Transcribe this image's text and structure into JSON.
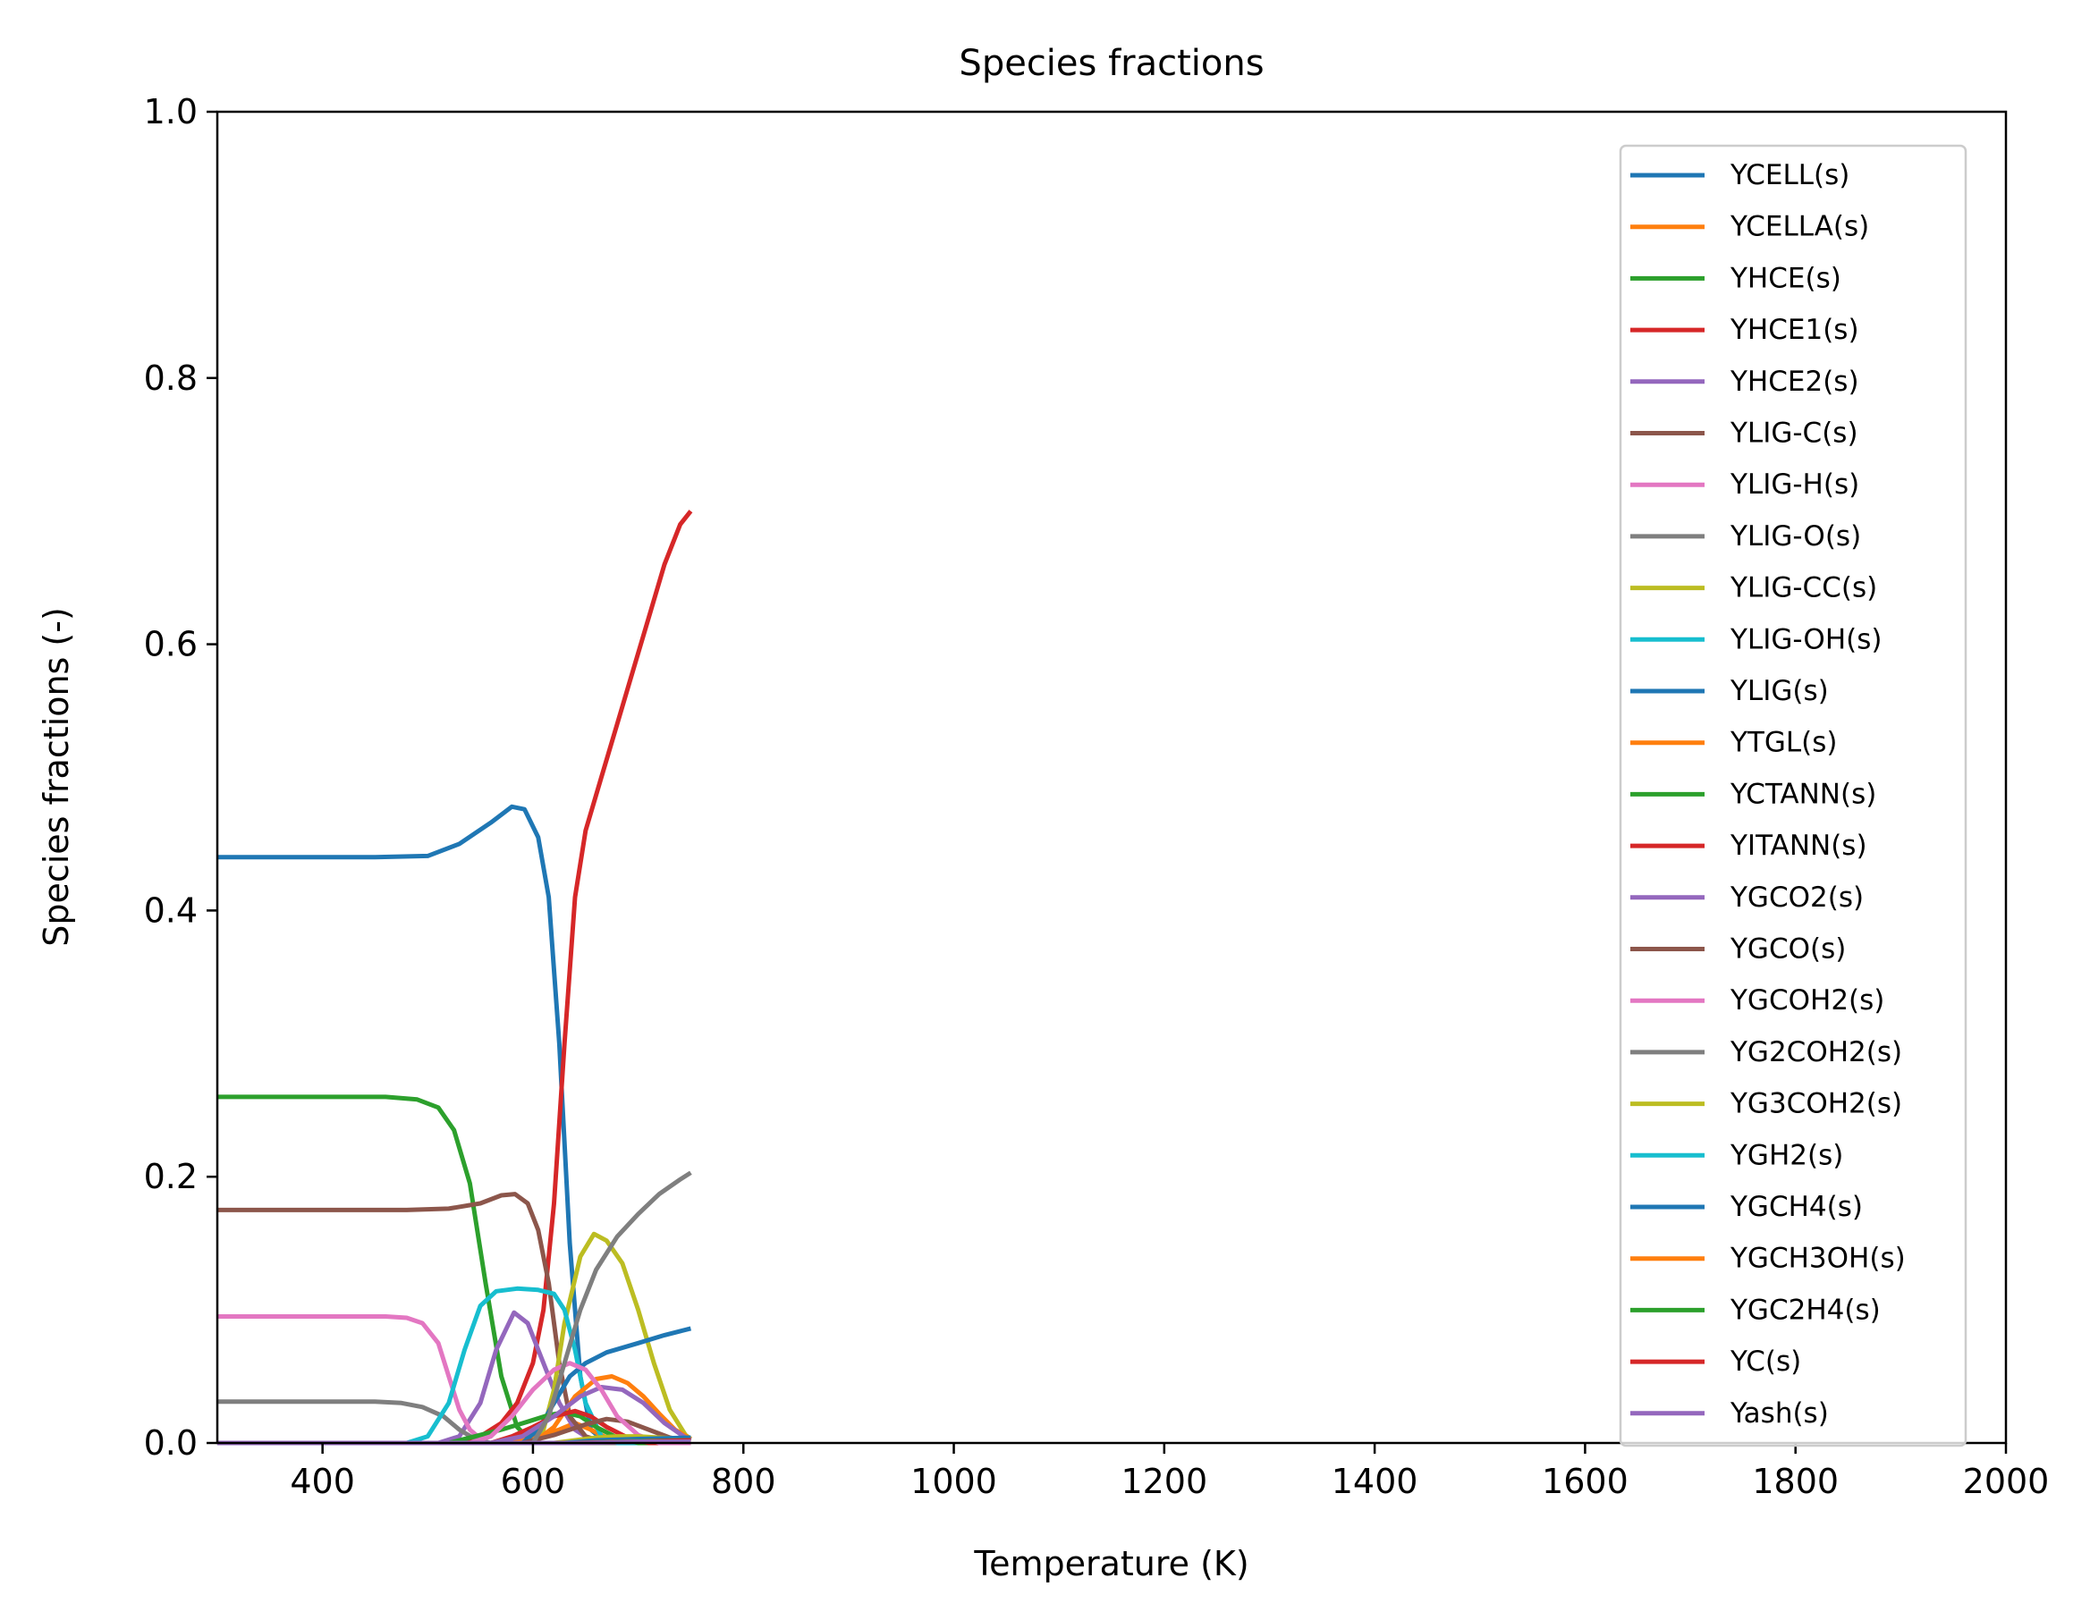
{
  "chart_data": {
    "type": "line",
    "title": "Species fractions",
    "xlabel": "Temperature (K)",
    "ylabel": "Species fractions (-)",
    "xlim": [
      300,
      2000
    ],
    "ylim": [
      0,
      1
    ],
    "xticks": [
      400,
      600,
      800,
      1000,
      1200,
      1400,
      1600,
      1800,
      2000
    ],
    "xtick_labels": [
      "400",
      "600",
      "800",
      "1000",
      "1200",
      "1400",
      "1600",
      "1800",
      "2000"
    ],
    "yticks": [
      0,
      0.2,
      0.4,
      0.6,
      0.8,
      1.0
    ],
    "ytick_labels": [
      "0.0",
      "0.2",
      "0.4",
      "0.6",
      "0.8",
      "1.0"
    ],
    "grid": false,
    "legend_position": "right, upper",
    "series": [
      {
        "name": "YCELL(s)",
        "color": "#1f77b4",
        "points": [
          [
            300,
            0.44
          ],
          [
            450,
            0.44
          ],
          [
            500,
            0.441
          ],
          [
            530,
            0.45
          ],
          [
            560,
            0.466
          ],
          [
            580,
            0.478
          ],
          [
            592,
            0.476
          ],
          [
            605,
            0.455
          ],
          [
            615,
            0.41
          ],
          [
            625,
            0.3
          ],
          [
            635,
            0.15
          ],
          [
            645,
            0.05
          ],
          [
            655,
            0.01
          ],
          [
            670,
            0.0
          ],
          [
            750,
            0.0
          ]
        ]
      },
      {
        "name": "YCELLA(s)",
        "color": "#ff7f0e",
        "points": [
          [
            300,
            0.0
          ],
          [
            560,
            0.0
          ],
          [
            600,
            0.004
          ],
          [
            625,
            0.01
          ],
          [
            640,
            0.015
          ],
          [
            655,
            0.01
          ],
          [
            670,
            0.004
          ],
          [
            700,
            0.0
          ],
          [
            750,
            0.0
          ]
        ]
      },
      {
        "name": "YHCE(s)",
        "color": "#2ca02c",
        "points": [
          [
            300,
            0.26
          ],
          [
            460,
            0.26
          ],
          [
            490,
            0.258
          ],
          [
            510,
            0.252
          ],
          [
            525,
            0.235
          ],
          [
            540,
            0.195
          ],
          [
            555,
            0.12
          ],
          [
            570,
            0.05
          ],
          [
            585,
            0.012
          ],
          [
            600,
            0.0
          ],
          [
            750,
            0.0
          ]
        ]
      },
      {
        "name": "YHCE1(s)",
        "color": "#d62728",
        "points": [
          [
            300,
            0.0
          ],
          [
            520,
            0.0
          ],
          [
            550,
            0.005
          ],
          [
            570,
            0.015
          ],
          [
            585,
            0.03
          ],
          [
            600,
            0.06
          ],
          [
            610,
            0.1
          ],
          [
            620,
            0.18
          ],
          [
            630,
            0.3
          ],
          [
            640,
            0.41
          ],
          [
            650,
            0.46
          ],
          [
            665,
            0.5
          ],
          [
            680,
            0.54
          ],
          [
            695,
            0.58
          ],
          [
            710,
            0.62
          ],
          [
            725,
            0.66
          ],
          [
            740,
            0.69
          ],
          [
            750,
            0.7
          ]
        ]
      },
      {
        "name": "YHCE2(s)",
        "color": "#9467bd",
        "points": [
          [
            300,
            0.0
          ],
          [
            510,
            0.0
          ],
          [
            530,
            0.005
          ],
          [
            550,
            0.03
          ],
          [
            565,
            0.07
          ],
          [
            582,
            0.098
          ],
          [
            595,
            0.09
          ],
          [
            610,
            0.06
          ],
          [
            625,
            0.03
          ],
          [
            640,
            0.01
          ],
          [
            660,
            0.0
          ],
          [
            750,
            0.0
          ]
        ]
      },
      {
        "name": "YLIG-C(s)",
        "color": "#8c564b",
        "points": [
          [
            300,
            0.175
          ],
          [
            480,
            0.175
          ],
          [
            520,
            0.176
          ],
          [
            550,
            0.18
          ],
          [
            570,
            0.186
          ],
          [
            583,
            0.187
          ],
          [
            595,
            0.18
          ],
          [
            605,
            0.16
          ],
          [
            615,
            0.12
          ],
          [
            625,
            0.06
          ],
          [
            635,
            0.02
          ],
          [
            650,
            0.005
          ],
          [
            670,
            0.0
          ],
          [
            750,
            0.0
          ]
        ]
      },
      {
        "name": "YLIG-H(s)",
        "color": "#e377c2",
        "points": [
          [
            300,
            0.095
          ],
          [
            460,
            0.095
          ],
          [
            480,
            0.094
          ],
          [
            495,
            0.09
          ],
          [
            510,
            0.075
          ],
          [
            520,
            0.05
          ],
          [
            530,
            0.025
          ],
          [
            540,
            0.01
          ],
          [
            555,
            0.0
          ],
          [
            750,
            0.0
          ]
        ]
      },
      {
        "name": "YLIG-O(s)",
        "color": "#7f7f7f",
        "points": [
          [
            300,
            0.031
          ],
          [
            450,
            0.031
          ],
          [
            475,
            0.03
          ],
          [
            495,
            0.027
          ],
          [
            515,
            0.02
          ],
          [
            530,
            0.01
          ],
          [
            545,
            0.003
          ],
          [
            560,
            0.0
          ],
          [
            750,
            0.0
          ]
        ]
      },
      {
        "name": "YLIG-CC(s)",
        "color": "#bcbd22",
        "points": [
          [
            300,
            0.0
          ],
          [
            600,
            0.0
          ],
          [
            610,
            0.01
          ],
          [
            620,
            0.04
          ],
          [
            630,
            0.09
          ],
          [
            645,
            0.14
          ],
          [
            658,
            0.157
          ],
          [
            670,
            0.152
          ],
          [
            685,
            0.135
          ],
          [
            700,
            0.1
          ],
          [
            715,
            0.06
          ],
          [
            730,
            0.025
          ],
          [
            745,
            0.006
          ],
          [
            750,
            0.003
          ]
        ]
      },
      {
        "name": "YLIG-OH(s)",
        "color": "#17becf",
        "points": [
          [
            300,
            0.0
          ],
          [
            480,
            0.0
          ],
          [
            500,
            0.005
          ],
          [
            520,
            0.03
          ],
          [
            535,
            0.07
          ],
          [
            550,
            0.103
          ],
          [
            565,
            0.114
          ],
          [
            585,
            0.116
          ],
          [
            605,
            0.115
          ],
          [
            620,
            0.112
          ],
          [
            630,
            0.1
          ],
          [
            640,
            0.07
          ],
          [
            650,
            0.03
          ],
          [
            665,
            0.005
          ],
          [
            680,
            0.0
          ],
          [
            750,
            0.0
          ]
        ]
      },
      {
        "name": "YLIG(s)",
        "color": "#1f77b4",
        "points": [
          [
            300,
            0.0
          ],
          [
            590,
            0.0
          ],
          [
            605,
            0.01
          ],
          [
            620,
            0.03
          ],
          [
            635,
            0.05
          ],
          [
            650,
            0.06
          ],
          [
            670,
            0.068
          ],
          [
            700,
            0.075
          ],
          [
            725,
            0.081
          ],
          [
            740,
            0.084
          ],
          [
            750,
            0.086
          ]
        ]
      },
      {
        "name": "YTGL(s)",
        "color": "#ff7f0e",
        "points": [
          [
            300,
            0.0
          ],
          [
            600,
            0.0
          ],
          [
            620,
            0.012
          ],
          [
            640,
            0.035
          ],
          [
            660,
            0.048
          ],
          [
            675,
            0.05
          ],
          [
            690,
            0.045
          ],
          [
            705,
            0.035
          ],
          [
            720,
            0.022
          ],
          [
            735,
            0.01
          ],
          [
            750,
            0.003
          ]
        ]
      },
      {
        "name": "YCTANN(s)",
        "color": "#2ca02c",
        "points": [
          [
            300,
            0.0
          ],
          [
            520,
            0.0
          ],
          [
            545,
            0.005
          ],
          [
            570,
            0.01
          ],
          [
            595,
            0.016
          ],
          [
            615,
            0.021
          ],
          [
            630,
            0.023
          ],
          [
            645,
            0.02
          ],
          [
            660,
            0.012
          ],
          [
            680,
            0.004
          ],
          [
            700,
            0.0
          ],
          [
            750,
            0.0
          ]
        ]
      },
      {
        "name": "YITANN(s)",
        "color": "#d62728",
        "points": [
          [
            300,
            0.0
          ],
          [
            560,
            0.0
          ],
          [
            580,
            0.005
          ],
          [
            600,
            0.012
          ],
          [
            620,
            0.02
          ],
          [
            640,
            0.024
          ],
          [
            655,
            0.02
          ],
          [
            670,
            0.012
          ],
          [
            690,
            0.004
          ],
          [
            710,
            0.0
          ],
          [
            750,
            0.0
          ]
        ]
      },
      {
        "name": "YGCO2(s)",
        "color": "#9467bd",
        "points": [
          [
            300,
            0.0
          ],
          [
            560,
            0.0
          ],
          [
            590,
            0.005
          ],
          [
            620,
            0.02
          ],
          [
            645,
            0.035
          ],
          [
            665,
            0.042
          ],
          [
            685,
            0.04
          ],
          [
            705,
            0.03
          ],
          [
            725,
            0.015
          ],
          [
            745,
            0.004
          ],
          [
            750,
            0.002
          ]
        ]
      },
      {
        "name": "YGCO(s)",
        "color": "#8c564b",
        "points": [
          [
            300,
            0.0
          ],
          [
            590,
            0.0
          ],
          [
            620,
            0.006
          ],
          [
            650,
            0.014
          ],
          [
            670,
            0.018
          ],
          [
            690,
            0.016
          ],
          [
            710,
            0.01
          ],
          [
            730,
            0.004
          ],
          [
            750,
            0.001
          ]
        ]
      },
      {
        "name": "YGCOH2(s)",
        "color": "#e377c2",
        "points": [
          [
            300,
            0.0
          ],
          [
            540,
            0.0
          ],
          [
            560,
            0.005
          ],
          [
            580,
            0.02
          ],
          [
            600,
            0.04
          ],
          [
            620,
            0.055
          ],
          [
            635,
            0.06
          ],
          [
            650,
            0.055
          ],
          [
            665,
            0.04
          ],
          [
            680,
            0.02
          ],
          [
            700,
            0.006
          ],
          [
            720,
            0.0
          ],
          [
            750,
            0.0
          ]
        ]
      },
      {
        "name": "YG2COH2(s)",
        "color": "#7f7f7f",
        "points": [
          [
            300,
            0.0
          ],
          [
            600,
            0.0
          ],
          [
            615,
            0.02
          ],
          [
            630,
            0.06
          ],
          [
            645,
            0.1
          ],
          [
            660,
            0.13
          ],
          [
            680,
            0.155
          ],
          [
            700,
            0.172
          ],
          [
            720,
            0.187
          ],
          [
            740,
            0.198
          ],
          [
            750,
            0.203
          ]
        ]
      },
      {
        "name": "YG3COH2(s)",
        "color": "#bcbd22",
        "points": [
          [
            300,
            0.0
          ],
          [
            620,
            0.0
          ],
          [
            640,
            0.002
          ],
          [
            660,
            0.004
          ],
          [
            680,
            0.005
          ],
          [
            700,
            0.005
          ],
          [
            720,
            0.004
          ],
          [
            750,
            0.003
          ]
        ]
      },
      {
        "name": "YGH2(s)",
        "color": "#17becf",
        "points": [
          [
            300,
            0.0
          ],
          [
            630,
            0.0
          ],
          [
            660,
            0.001
          ],
          [
            700,
            0.002
          ],
          [
            750,
            0.003
          ]
        ]
      },
      {
        "name": "YGCH4(s)",
        "color": "#1f77b4",
        "points": [
          [
            300,
            0.0
          ],
          [
            630,
            0.0
          ],
          [
            660,
            0.002
          ],
          [
            700,
            0.003
          ],
          [
            750,
            0.004
          ]
        ]
      },
      {
        "name": "YGCH3OH(s)",
        "color": "#ff7f0e",
        "points": [
          [
            300,
            0.0
          ],
          [
            640,
            0.0
          ],
          [
            680,
            0.001
          ],
          [
            750,
            0.002
          ]
        ]
      },
      {
        "name": "YGC2H4(s)",
        "color": "#2ca02c",
        "points": [
          [
            300,
            0.0
          ],
          [
            640,
            0.0
          ],
          [
            680,
            0.001
          ],
          [
            750,
            0.002
          ]
        ]
      },
      {
        "name": "YC(s)",
        "color": "#d62728",
        "points": [
          [
            300,
            0.0
          ],
          [
            640,
            0.0
          ],
          [
            700,
            0.001
          ],
          [
            750,
            0.002
          ]
        ]
      },
      {
        "name": "Yash(s)",
        "color": "#9467bd",
        "points": [
          [
            300,
            0.0
          ],
          [
            650,
            0.0
          ],
          [
            700,
            0.001
          ],
          [
            750,
            0.001
          ]
        ]
      }
    ]
  }
}
